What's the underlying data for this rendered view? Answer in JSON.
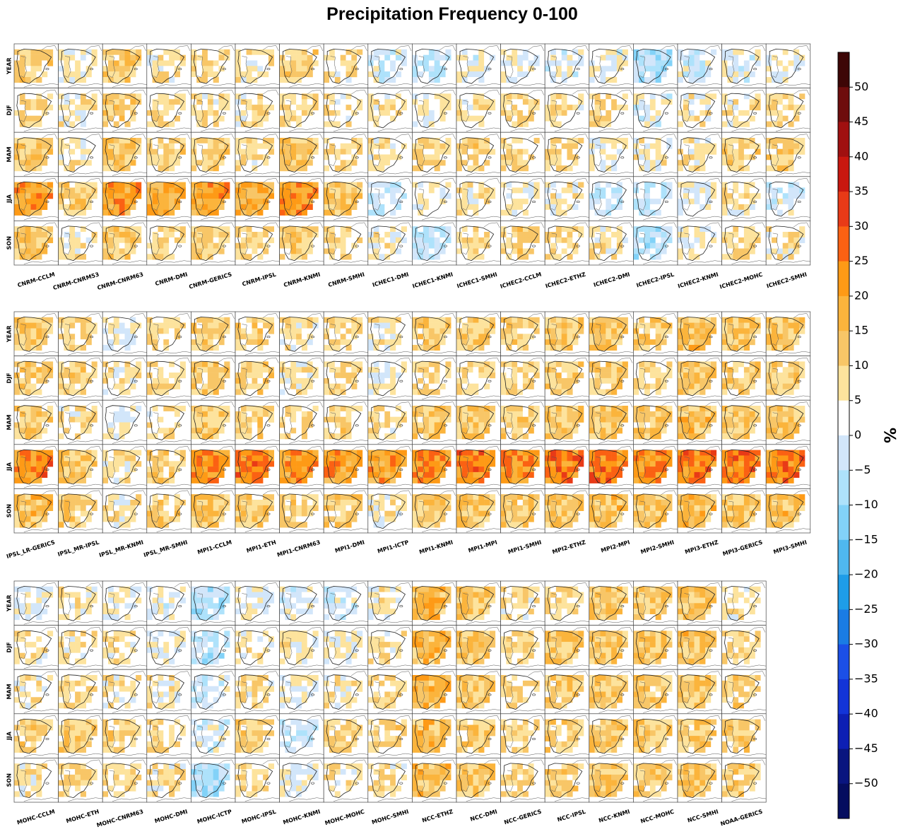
{
  "chart_data": {
    "type": "heatmap",
    "title": "Precipitation Frequency 0-100",
    "colorbar": {
      "label": "%",
      "range": [
        -55,
        55
      ],
      "ticks": [
        "50",
        "45",
        "40",
        "35",
        "30",
        "25",
        "20",
        "15",
        "10",
        "5",
        "0",
        "−5",
        "−10",
        "−15",
        "−20",
        "−25",
        "−30",
        "−35",
        "−40",
        "−45",
        "−50"
      ],
      "tick_values": [
        50,
        45,
        40,
        35,
        30,
        25,
        20,
        15,
        10,
        5,
        0,
        -5,
        -10,
        -15,
        -20,
        -25,
        -30,
        -35,
        -40,
        -45,
        -50
      ],
      "bins": [
        {
          "from": 50,
          "to": 55,
          "color": "#3d0606"
        },
        {
          "from": 45,
          "to": 50,
          "color": "#6e0d0d"
        },
        {
          "from": 40,
          "to": 45,
          "color": "#a01010"
        },
        {
          "from": 35,
          "to": 40,
          "color": "#c8170f"
        },
        {
          "from": 30,
          "to": 35,
          "color": "#e83a17"
        },
        {
          "from": 25,
          "to": 30,
          "color": "#fb6113"
        },
        {
          "from": 20,
          "to": 25,
          "color": "#fe9a16"
        },
        {
          "from": 15,
          "to": 20,
          "color": "#fbb43c"
        },
        {
          "from": 10,
          "to": 15,
          "color": "#f8c667"
        },
        {
          "from": 5,
          "to": 10,
          "color": "#fde39d"
        },
        {
          "from": 0,
          "to": 5,
          "color": "#ffffff"
        },
        {
          "from": -5,
          "to": 0,
          "color": "#d2e6fa"
        },
        {
          "from": -10,
          "to": -5,
          "color": "#aee2fb"
        },
        {
          "from": -15,
          "to": -10,
          "color": "#82d2f8"
        },
        {
          "from": -20,
          "to": -15,
          "color": "#4fb8ef"
        },
        {
          "from": -25,
          "to": -20,
          "color": "#1e9de8"
        },
        {
          "from": -30,
          "to": -25,
          "color": "#1a7ce4"
        },
        {
          "from": -35,
          "to": -30,
          "color": "#1b4fe7"
        },
        {
          "from": -40,
          "to": -35,
          "color": "#1334d8"
        },
        {
          "from": -45,
          "to": -40,
          "color": "#0d1fb4"
        },
        {
          "from": -50,
          "to": -45,
          "color": "#09157f"
        },
        {
          "from": -55,
          "to": -50,
          "color": "#050d5f"
        }
      ]
    },
    "seasons": [
      "YEAR",
      "DJF",
      "MAM",
      "JJA",
      "SON"
    ],
    "panels": [
      {
        "models": [
          "CNRM-CCLM",
          "CNRM-CNRM53",
          "CNRM-CNRM63",
          "CNRM-DMI",
          "CNRM-GERICS",
          "CNRM-IPSL",
          "CNRM-KNMI",
          "CNRM-SMHI",
          "ICHEC1-DMI",
          "ICHEC1-KNMI",
          "ICHEC1-SMHI",
          "ICHEC2-CCLM",
          "ICHEC2-ETHZ",
          "ICHEC2-DMI",
          "ICHEC2-IPSL",
          "ICHEC2-KNMI",
          "ICHEC2-MOHC",
          "ICHEC2-SMHI"
        ],
        "season_mean": [
          [
            9,
            3,
            11,
            6,
            8,
            5,
            10,
            6,
            -1,
            -2,
            1,
            2,
            0,
            1,
            -6,
            -1,
            1,
            2
          ],
          [
            8,
            4,
            9,
            7,
            6,
            5,
            8,
            5,
            6,
            4,
            6,
            8,
            5,
            7,
            1,
            5,
            6,
            7
          ],
          [
            12,
            5,
            12,
            9,
            11,
            6,
            12,
            7,
            6,
            8,
            9,
            8,
            8,
            3,
            5,
            6,
            10,
            10
          ],
          [
            20,
            11,
            21,
            18,
            21,
            17,
            23,
            13,
            -3,
            3,
            6,
            3,
            4,
            -2,
            -2,
            2,
            6,
            -1
          ],
          [
            12,
            5,
            11,
            8,
            9,
            7,
            10,
            7,
            4,
            -3,
            7,
            9,
            7,
            5,
            -5,
            2,
            8,
            6
          ]
        ]
      },
      {
        "models": [
          "IPSL_LR-GERICS",
          "IPSL_MR-IPSL",
          "IPSL_MR-KNMI",
          "IPSL_MR-SMHI",
          "MPI1-CCLM",
          "MPI1-ETH",
          "MPI1-CNRM63",
          "MPI1-DMI",
          "MPI1-ICTP",
          "MPI1-KNMI",
          "MPI1-MPI",
          "MPI1-SMHI",
          "MPI2-ETHZ",
          "MPI2-MPI",
          "MPI2-SMHI",
          "MPI3-ETHZ",
          "MPI3-GERICS",
          "MPI3-SMHI"
        ],
        "season_mean": [
          [
            12,
            8,
            2,
            7,
            11,
            9,
            6,
            8,
            4,
            10,
            11,
            9,
            12,
            13,
            10,
            14,
            12,
            13
          ],
          [
            10,
            9,
            6,
            8,
            10,
            9,
            4,
            7,
            3,
            8,
            7,
            8,
            10,
            11,
            9,
            11,
            10,
            11
          ],
          [
            11,
            6,
            3,
            5,
            12,
            10,
            7,
            9,
            6,
            11,
            12,
            10,
            13,
            13,
            11,
            14,
            12,
            13
          ],
          [
            24,
            12,
            6,
            10,
            22,
            24,
            20,
            21,
            19,
            23,
            24,
            22,
            25,
            25,
            23,
            25,
            24,
            25
          ],
          [
            14,
            10,
            5,
            9,
            13,
            11,
            9,
            10,
            5,
            12,
            12,
            11,
            13,
            14,
            12,
            14,
            13,
            14
          ]
        ]
      },
      {
        "models": [
          "MOHC-CCLM",
          "MOHC-ETH",
          "MOHC-CNRM63",
          "MOHC-DMI",
          "MOHC-ICTP",
          "MOHC-IPSL",
          "MOHC-KNMI",
          "MOHC-MOHC",
          "MOHC-SMHI",
          "NCC-ETHZ",
          "NCC-DMI",
          "NCC-GERICS",
          "NCC-IPSL",
          "NCC-KNMI",
          "NCC-MOHC",
          "NCC-SMHI",
          "NOAA-GERICS"
        ],
        "season_mean": [
          [
            2,
            4,
            3,
            1,
            -6,
            3,
            0,
            -1,
            4,
            16,
            12,
            6,
            8,
            12,
            11,
            13,
            6
          ],
          [
            5,
            6,
            6,
            3,
            -5,
            5,
            4,
            3,
            6,
            15,
            13,
            7,
            12,
            13,
            12,
            14,
            8
          ],
          [
            6,
            7,
            5,
            4,
            0,
            6,
            3,
            4,
            7,
            16,
            12,
            7,
            10,
            12,
            11,
            12,
            9
          ],
          [
            9,
            10,
            9,
            6,
            0,
            9,
            -2,
            8,
            9,
            14,
            11,
            7,
            9,
            11,
            10,
            11,
            10
          ],
          [
            6,
            7,
            6,
            5,
            -7,
            6,
            3,
            5,
            6,
            15,
            13,
            8,
            9,
            13,
            11,
            13,
            9
          ]
        ]
      }
    ]
  }
}
